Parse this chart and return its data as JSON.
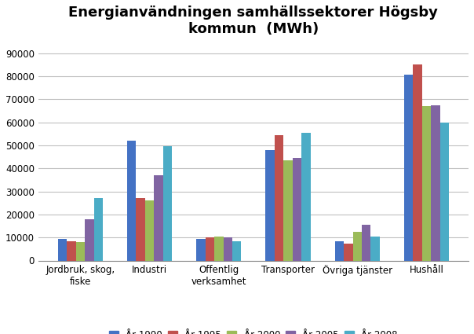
{
  "title": "Energianvändningen samhällssektorer Högsby\nkommun  (MWh)",
  "categories": [
    "Jordbruk, skog,\nfiske",
    "Industri",
    "Offentlig\nverksamhet",
    "Transporter",
    "Övriga tjänster",
    "Hushåll"
  ],
  "series": {
    "År 1990": [
      9500,
      52000,
      9500,
      48000,
      8500,
      80500
    ],
    "År 1995": [
      8500,
      27000,
      10000,
      54500,
      7500,
      85000
    ],
    "År 2000": [
      8000,
      26000,
      10500,
      43500,
      12500,
      67000
    ],
    "År 2005": [
      18000,
      37000,
      10000,
      44500,
      15500,
      67500
    ],
    "År 2008": [
      27000,
      49500,
      8500,
      55500,
      10500,
      60000
    ]
  },
  "colors": {
    "År 1990": "#4472C4",
    "År 1995": "#C0504D",
    "År 2000": "#9BBB59",
    "År 2005": "#8064A2",
    "År 2008": "#4BACC6"
  },
  "ylim": [
    0,
    95000
  ],
  "yticks": [
    0,
    10000,
    20000,
    30000,
    40000,
    50000,
    60000,
    70000,
    80000,
    90000
  ],
  "background_color": "#FFFFFF",
  "plot_bg_color": "#FFFFFF",
  "grid_color": "#C0C0C0",
  "title_fontsize": 13,
  "legend_fontsize": 8.5,
  "tick_fontsize": 8.5,
  "bar_width": 0.13
}
